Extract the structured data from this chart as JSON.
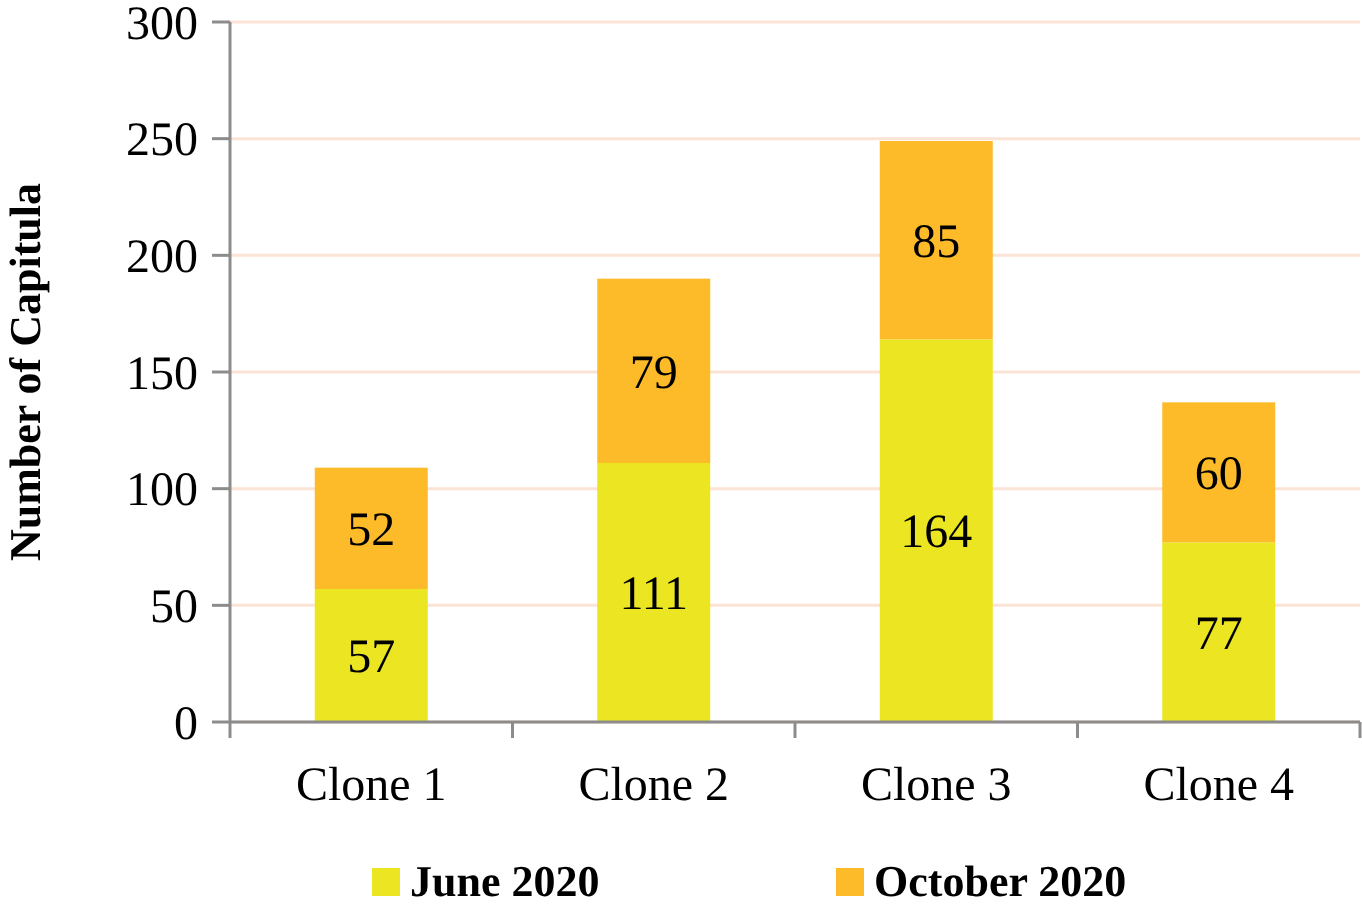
{
  "chart_data": {
    "type": "bar",
    "ylabel": "Number of Capitula",
    "categories": [
      "Clone 1",
      "Clone 2",
      "Clone 3",
      "Clone 4"
    ],
    "series": [
      {
        "name": "June 2020",
        "color": "#ebe621",
        "values": [
          57,
          111,
          164,
          77
        ]
      },
      {
        "name": "October 2020",
        "color": "#fdbb2a",
        "values": [
          52,
          79,
          85,
          60
        ]
      }
    ],
    "stacked": true,
    "ylim": [
      0,
      300
    ],
    "yticks": [
      0,
      50,
      100,
      150,
      200,
      250,
      300
    ],
    "grid": "y",
    "legend": "bottom",
    "data_labels": true
  }
}
